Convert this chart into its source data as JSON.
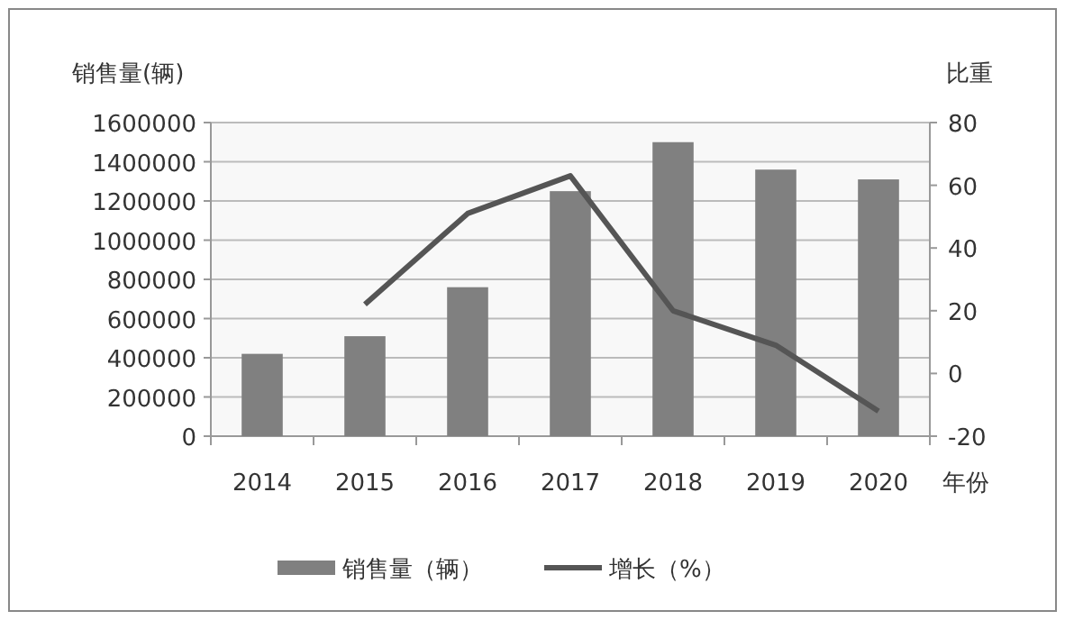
{
  "chart_data": {
    "type": "bar",
    "ylabel": "销售量(辆)",
    "y2label": "比重",
    "xlabel": "年份",
    "categories": [
      "2014",
      "2015",
      "2016",
      "2017",
      "2018",
      "2019",
      "2020"
    ],
    "series": [
      {
        "name": "销售量（辆）",
        "color": "#808080",
        "values": [
          420000,
          510000,
          760000,
          1250000,
          1500000,
          1360000,
          1310000
        ]
      },
      {
        "name": "增长（%）",
        "type": "line",
        "axis": "y2",
        "color": "#555555",
        "values": [
          null,
          22,
          51,
          63,
          20,
          9,
          -12
        ]
      }
    ],
    "ylim": [
      0,
      1600000
    ],
    "yticks": [
      0,
      200000,
      400000,
      600000,
      800000,
      1000000,
      1200000,
      1400000,
      1600000
    ],
    "y2lim": [
      -20,
      80
    ],
    "y2ticks": [
      -20,
      0,
      20,
      40,
      60,
      80
    ],
    "grid": "y",
    "legend": "bottom",
    "line_style": "solid",
    "marker": "none"
  }
}
